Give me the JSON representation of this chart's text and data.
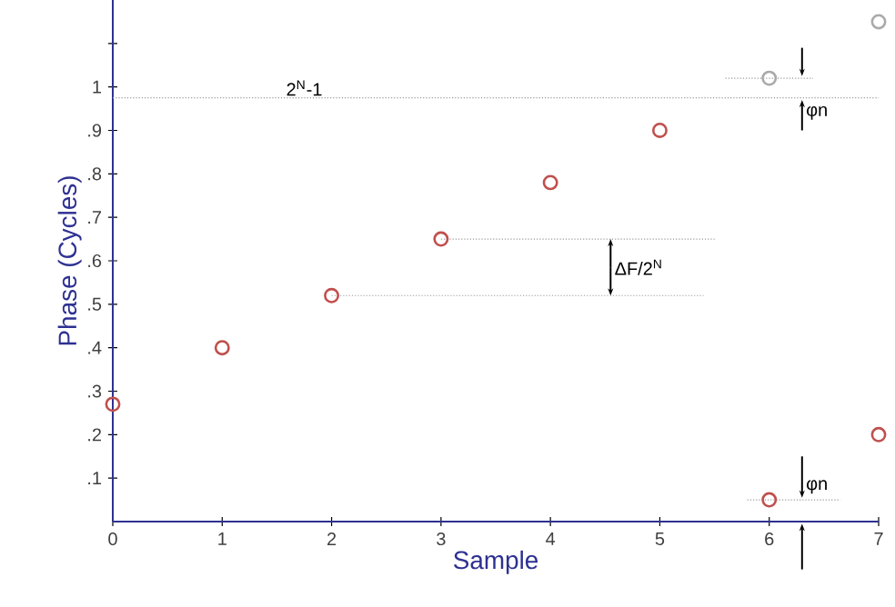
{
  "chart_data": {
    "type": "scatter",
    "xlabel": "Sample",
    "ylabel": "Phase (Cycles)",
    "xlim": [
      0,
      7
    ],
    "ylim": [
      0,
      1.2
    ],
    "xticks": [
      0,
      1,
      2,
      3,
      4,
      5,
      6,
      7
    ],
    "yticks": [
      {
        "value": 0.1,
        "label": ".1"
      },
      {
        "value": 0.2,
        "label": ".2"
      },
      {
        "value": 0.3,
        "label": ".3"
      },
      {
        "value": 0.4,
        "label": ".4"
      },
      {
        "value": 0.5,
        "label": ".5"
      },
      {
        "value": 0.6,
        "label": ".6"
      },
      {
        "value": 0.7,
        "label": ".7"
      },
      {
        "value": 0.8,
        "label": ".8"
      },
      {
        "value": 0.9,
        "label": ".9"
      },
      {
        "value": 1,
        "label": "1"
      },
      {
        "value": 1.1,
        "label": null
      }
    ],
    "marker": "circle",
    "series": [
      {
        "color": "#c0504d",
        "x": [
          0,
          1,
          2,
          3,
          4,
          5,
          6,
          7
        ],
        "values": [
          0.27,
          0.4,
          0.52,
          0.65,
          0.78,
          0.9,
          0.05,
          0.2
        ]
      },
      {
        "color": "#aaaaaa",
        "x": [
          6,
          7
        ],
        "values": [
          1.02,
          1.15
        ]
      },
      {
        "type": "line",
        "line_style": "dotted",
        "marker": "none",
        "color": "#999999",
        "x": [
          3,
          5.5
        ],
        "values": [
          0.65,
          0.65
        ]
      },
      {
        "type": "line",
        "line_style": "dotted",
        "marker": "none",
        "color": "#999999",
        "x": [
          2,
          5.4
        ],
        "values": [
          0.52,
          0.52
        ]
      },
      {
        "type": "line",
        "line_style": "dotted",
        "marker": "none",
        "color": "#999999",
        "x": [
          5.6,
          6.4
        ],
        "values": [
          1.02,
          1.02
        ]
      },
      {
        "type": "line",
        "line_style": "dotted",
        "marker": "none",
        "color": "#999999",
        "x": [
          5.8,
          6.65
        ],
        "values": [
          0.05,
          0.05
        ]
      }
    ],
    "ref_lines": [
      {
        "axis": "y",
        "value": 0.975,
        "label": "2$^{N}$-1",
        "color": "#999999",
        "line_style": "dotted"
      }
    ],
    "annotations": [
      "ΔF/2$^{N}$",
      "φn",
      "φn"
    ]
  }
}
